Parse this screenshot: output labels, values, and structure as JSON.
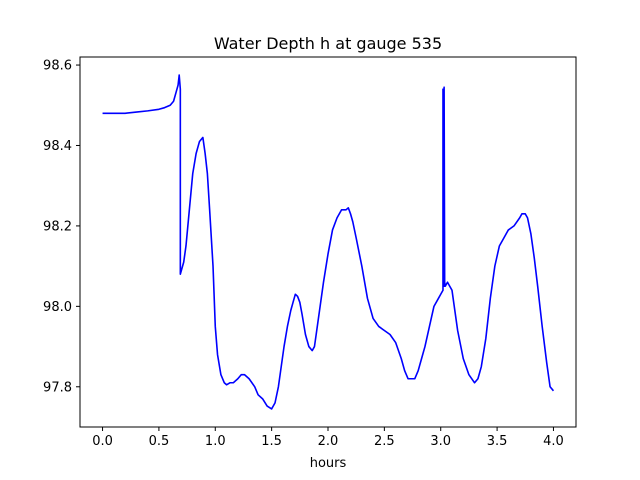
{
  "chart_data": {
    "type": "line",
    "title": "Water Depth h at gauge 535",
    "xlabel": "hours",
    "ylabel": "",
    "xlim": [
      -0.2,
      4.2
    ],
    "ylim": [
      97.7,
      98.62
    ],
    "xticks": [
      0.0,
      0.5,
      1.0,
      1.5,
      2.0,
      2.5,
      3.0,
      3.5,
      4.0
    ],
    "xtick_labels": [
      "0.0",
      "0.5",
      "1.0",
      "1.5",
      "2.0",
      "2.5",
      "3.0",
      "3.5",
      "4.0"
    ],
    "yticks": [
      97.8,
      98.0,
      98.2,
      98.4,
      98.6
    ],
    "ytick_labels": [
      "97.8",
      "98.0",
      "98.2",
      "98.4",
      "98.6"
    ],
    "grid": false,
    "series": [
      {
        "color": "#0000ff",
        "x": [
          0.0,
          0.1,
          0.2,
          0.3,
          0.4,
          0.5,
          0.55,
          0.6,
          0.63,
          0.65,
          0.67,
          0.68,
          0.69,
          0.69,
          0.7,
          0.72,
          0.74,
          0.77,
          0.8,
          0.83,
          0.86,
          0.89,
          0.9,
          0.91,
          0.93,
          0.95,
          0.98,
          1.0,
          1.02,
          1.05,
          1.08,
          1.1,
          1.13,
          1.16,
          1.2,
          1.23,
          1.26,
          1.3,
          1.35,
          1.38,
          1.42,
          1.46,
          1.5,
          1.53,
          1.56,
          1.58,
          1.61,
          1.64,
          1.67,
          1.69,
          1.71,
          1.73,
          1.75,
          1.77,
          1.8,
          1.83,
          1.86,
          1.88,
          1.9,
          1.93,
          1.96,
          2.0,
          2.04,
          2.08,
          2.12,
          2.16,
          2.18,
          2.2,
          2.22,
          2.25,
          2.3,
          2.35,
          2.4,
          2.45,
          2.5,
          2.55,
          2.6,
          2.65,
          2.68,
          2.71,
          2.74,
          2.77,
          2.8,
          2.83,
          2.86,
          2.9,
          2.94,
          2.98,
          3.0,
          3.02,
          3.02,
          3.025,
          3.03,
          3.03,
          3.035,
          3.04,
          3.06,
          3.08,
          3.1,
          3.12,
          3.15,
          3.2,
          3.25,
          3.3,
          3.33,
          3.36,
          3.4,
          3.44,
          3.48,
          3.52,
          3.56,
          3.6,
          3.65,
          3.7,
          3.72,
          3.75,
          3.77,
          3.8,
          3.83,
          3.86,
          3.9,
          3.94,
          3.97,
          4.0
        ],
        "y": [
          98.48,
          98.48,
          98.48,
          98.483,
          98.486,
          98.49,
          98.494,
          98.5,
          98.51,
          98.53,
          98.55,
          98.575,
          98.54,
          98.08,
          98.09,
          98.11,
          98.15,
          98.24,
          98.33,
          98.38,
          98.41,
          98.42,
          98.4,
          98.38,
          98.33,
          98.24,
          98.1,
          97.95,
          97.88,
          97.83,
          97.81,
          97.805,
          97.81,
          97.81,
          97.82,
          97.83,
          97.83,
          97.82,
          97.8,
          97.78,
          97.77,
          97.752,
          97.745,
          97.76,
          97.8,
          97.84,
          97.9,
          97.95,
          97.99,
          98.01,
          98.03,
          98.025,
          98.01,
          97.98,
          97.93,
          97.9,
          97.89,
          97.9,
          97.94,
          98.0,
          98.06,
          98.13,
          98.19,
          98.22,
          98.24,
          98.24,
          98.245,
          98.23,
          98.21,
          98.17,
          98.1,
          98.02,
          97.97,
          97.95,
          97.94,
          97.93,
          97.91,
          97.87,
          97.84,
          97.82,
          97.82,
          97.82,
          97.84,
          97.87,
          97.9,
          97.95,
          98.0,
          98.02,
          98.03,
          98.04,
          98.54,
          98.05,
          98.05,
          98.545,
          98.06,
          98.05,
          98.06,
          98.05,
          98.04,
          98.0,
          97.94,
          97.87,
          97.83,
          97.81,
          97.82,
          97.85,
          97.92,
          98.02,
          98.1,
          98.15,
          98.17,
          98.19,
          98.2,
          98.22,
          98.23,
          98.23,
          98.22,
          98.18,
          98.12,
          98.05,
          97.95,
          97.86,
          97.8,
          97.79
        ]
      }
    ]
  }
}
